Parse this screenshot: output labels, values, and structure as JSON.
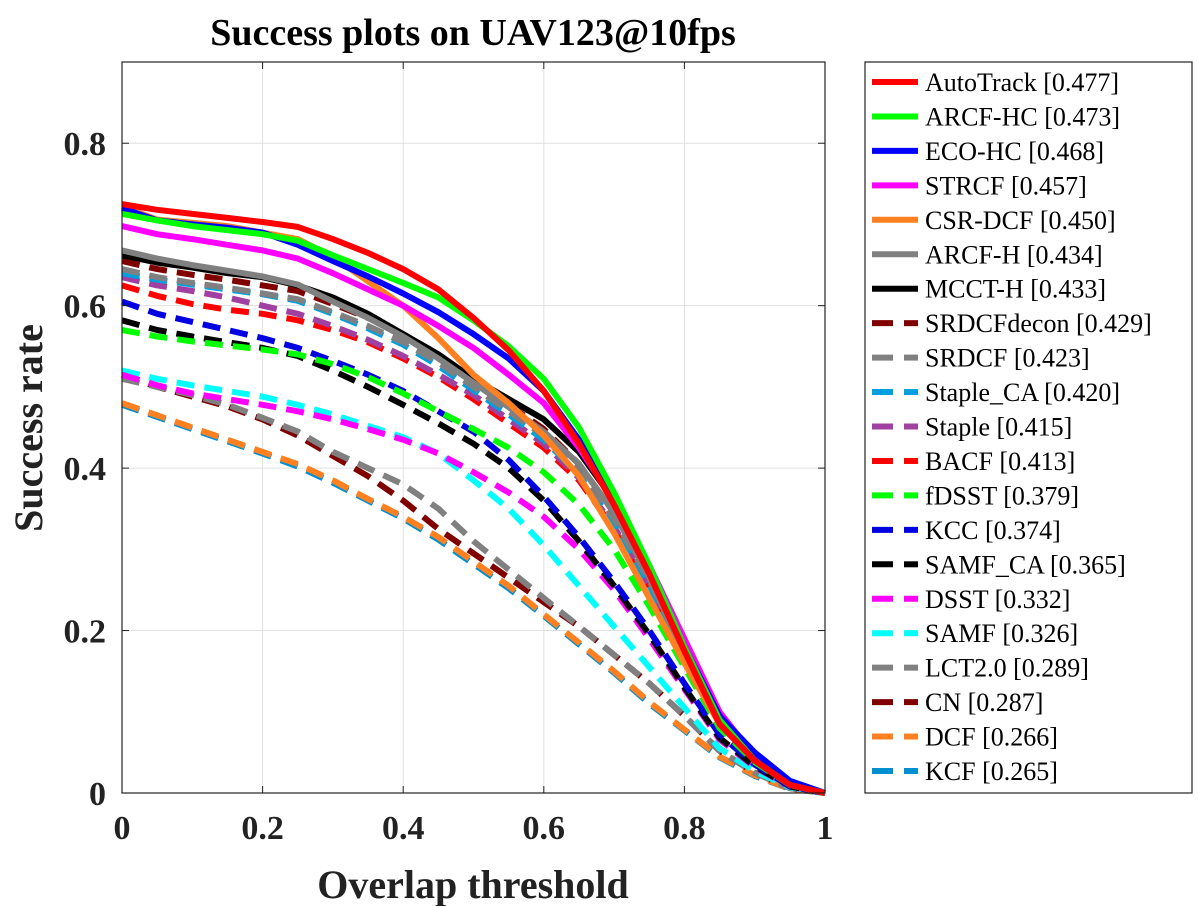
{
  "chart_data": {
    "type": "line",
    "title": "Success plots on UAV123@10fps",
    "xlabel": "Overlap threshold",
    "ylabel": "Success rate",
    "xlim": [
      0,
      1
    ],
    "ylim": [
      0,
      0.9
    ],
    "xticks": [
      0,
      0.2,
      0.4,
      0.6,
      0.8,
      1
    ],
    "xtick_labels": [
      "0",
      "0.2",
      "0.4",
      "0.6",
      "0.8",
      "1"
    ],
    "yticks": [
      0,
      0.2,
      0.4,
      0.6,
      0.8
    ],
    "ytick_labels": [
      "0",
      "0.2",
      "0.4",
      "0.6",
      "0.8"
    ],
    "grid": true,
    "legend_position": "outside-right",
    "x": [
      0,
      0.05,
      0.1,
      0.15,
      0.2,
      0.25,
      0.3,
      0.35,
      0.4,
      0.45,
      0.5,
      0.55,
      0.6,
      0.65,
      0.7,
      0.75,
      0.8,
      0.85,
      0.9,
      0.95,
      1.0
    ],
    "series": [
      {
        "name": "AutoTrack [0.477]",
        "color": "#ff0000",
        "dashed": false,
        "values": [
          0.725,
          0.718,
          0.713,
          0.708,
          0.703,
          0.697,
          0.682,
          0.665,
          0.645,
          0.62,
          0.585,
          0.545,
          0.495,
          0.43,
          0.355,
          0.27,
          0.175,
          0.085,
          0.04,
          0.01,
          0.0
        ]
      },
      {
        "name": "ARCF-HC [0.473]",
        "color": "#00ff00",
        "dashed": false,
        "values": [
          0.713,
          0.705,
          0.698,
          0.693,
          0.688,
          0.68,
          0.662,
          0.645,
          0.628,
          0.61,
          0.582,
          0.55,
          0.51,
          0.45,
          0.37,
          0.28,
          0.18,
          0.09,
          0.04,
          0.01,
          0.0
        ]
      },
      {
        "name": "ECO-HC [0.468]",
        "color": "#0000ff",
        "dashed": false,
        "values": [
          0.72,
          0.705,
          0.7,
          0.696,
          0.69,
          0.675,
          0.655,
          0.636,
          0.615,
          0.592,
          0.565,
          0.535,
          0.495,
          0.435,
          0.36,
          0.275,
          0.18,
          0.095,
          0.05,
          0.015,
          0.0
        ]
      },
      {
        "name": "STRCF [0.457]",
        "color": "#ff00ff",
        "dashed": false,
        "values": [
          0.698,
          0.688,
          0.682,
          0.675,
          0.668,
          0.658,
          0.64,
          0.62,
          0.6,
          0.575,
          0.548,
          0.515,
          0.48,
          0.425,
          0.36,
          0.28,
          0.19,
          0.1,
          0.045,
          0.01,
          0.0
        ]
      },
      {
        "name": "CSR-DCF [0.450]",
        "color": "#ff8020",
        "dashed": false,
        "values": [
          0.722,
          0.706,
          0.702,
          0.698,
          0.69,
          0.682,
          0.66,
          0.63,
          0.6,
          0.56,
          0.515,
          0.48,
          0.44,
          0.39,
          0.32,
          0.24,
          0.16,
          0.085,
          0.04,
          0.01,
          0.0
        ]
      },
      {
        "name": "ARCF-H [0.434]",
        "color": "#808080",
        "dashed": false,
        "values": [
          0.668,
          0.658,
          0.65,
          0.643,
          0.636,
          0.626,
          0.605,
          0.585,
          0.562,
          0.535,
          0.505,
          0.475,
          0.445,
          0.405,
          0.345,
          0.265,
          0.17,
          0.085,
          0.04,
          0.01,
          0.0
        ]
      },
      {
        "name": "MCCT-H [0.433]",
        "color": "#000000",
        "dashed": false,
        "values": [
          0.662,
          0.653,
          0.647,
          0.64,
          0.635,
          0.625,
          0.61,
          0.59,
          0.565,
          0.54,
          0.51,
          0.485,
          0.46,
          0.42,
          0.36,
          0.28,
          0.18,
          0.09,
          0.04,
          0.01,
          0.0
        ]
      },
      {
        "name": "SRDCFdecon [0.429]",
        "color": "#800000",
        "dashed": true,
        "values": [
          0.655,
          0.645,
          0.638,
          0.632,
          0.625,
          0.618,
          0.602,
          0.585,
          0.565,
          0.54,
          0.508,
          0.478,
          0.448,
          0.405,
          0.345,
          0.268,
          0.18,
          0.095,
          0.045,
          0.01,
          0.0
        ]
      },
      {
        "name": "SRDCF [0.423]",
        "color": "#808080",
        "dashed": true,
        "values": [
          0.645,
          0.635,
          0.628,
          0.622,
          0.615,
          0.608,
          0.592,
          0.575,
          0.555,
          0.53,
          0.5,
          0.47,
          0.44,
          0.398,
          0.338,
          0.262,
          0.176,
          0.092,
          0.044,
          0.01,
          0.0
        ]
      },
      {
        "name": "Staple_CA [0.420]",
        "color": "#00a0e0",
        "dashed": true,
        "values": [
          0.64,
          0.632,
          0.626,
          0.62,
          0.614,
          0.606,
          0.59,
          0.572,
          0.552,
          0.526,
          0.496,
          0.466,
          0.435,
          0.392,
          0.332,
          0.256,
          0.172,
          0.09,
          0.043,
          0.01,
          0.0
        ]
      },
      {
        "name": "Staple [0.415]",
        "color": "#a040a0",
        "dashed": true,
        "values": [
          0.635,
          0.625,
          0.618,
          0.61,
          0.6,
          0.59,
          0.575,
          0.558,
          0.538,
          0.515,
          0.49,
          0.46,
          0.43,
          0.388,
          0.328,
          0.252,
          0.168,
          0.088,
          0.042,
          0.01,
          0.0
        ]
      },
      {
        "name": "BACF [0.413]",
        "color": "#ff0000",
        "dashed": true,
        "values": [
          0.625,
          0.612,
          0.602,
          0.595,
          0.59,
          0.582,
          0.57,
          0.555,
          0.535,
          0.512,
          0.485,
          0.455,
          0.425,
          0.385,
          0.325,
          0.25,
          0.166,
          0.086,
          0.041,
          0.01,
          0.0
        ]
      },
      {
        "name": "fDSST [0.379]",
        "color": "#00ff00",
        "dashed": true,
        "values": [
          0.57,
          0.562,
          0.556,
          0.551,
          0.546,
          0.54,
          0.528,
          0.512,
          0.492,
          0.47,
          0.448,
          0.425,
          0.395,
          0.355,
          0.3,
          0.23,
          0.155,
          0.08,
          0.038,
          0.01,
          0.0
        ]
      },
      {
        "name": "KCC [0.374]",
        "color": "#0000e0",
        "dashed": true,
        "values": [
          0.605,
          0.59,
          0.58,
          0.57,
          0.56,
          0.548,
          0.532,
          0.515,
          0.495,
          0.47,
          0.445,
          0.41,
          0.365,
          0.315,
          0.26,
          0.2,
          0.135,
          0.072,
          0.035,
          0.008,
          0.0
        ]
      },
      {
        "name": "SAMF_CA [0.365]",
        "color": "#000000",
        "dashed": true,
        "values": [
          0.582,
          0.57,
          0.562,
          0.555,
          0.548,
          0.538,
          0.52,
          0.5,
          0.478,
          0.455,
          0.43,
          0.4,
          0.36,
          0.31,
          0.255,
          0.195,
          0.13,
          0.068,
          0.033,
          0.008,
          0.0
        ]
      },
      {
        "name": "DSST [0.332]",
        "color": "#ff00ff",
        "dashed": true,
        "values": [
          0.515,
          0.502,
          0.492,
          0.485,
          0.478,
          0.47,
          0.46,
          0.448,
          0.435,
          0.418,
          0.395,
          0.37,
          0.34,
          0.3,
          0.25,
          0.19,
          0.128,
          0.066,
          0.032,
          0.008,
          0.0
        ]
      },
      {
        "name": "SAMF [0.326]",
        "color": "#00ffff",
        "dashed": true,
        "values": [
          0.52,
          0.51,
          0.502,
          0.495,
          0.488,
          0.478,
          0.466,
          0.452,
          0.438,
          0.418,
          0.385,
          0.35,
          0.305,
          0.255,
          0.205,
          0.155,
          0.105,
          0.055,
          0.027,
          0.007,
          0.0
        ]
      },
      {
        "name": "LCT2.0 [0.289]",
        "color": "#808080",
        "dashed": true,
        "values": [
          0.51,
          0.5,
          0.49,
          0.478,
          0.462,
          0.445,
          0.42,
          0.4,
          0.38,
          0.35,
          0.31,
          0.275,
          0.24,
          0.205,
          0.17,
          0.135,
          0.095,
          0.052,
          0.025,
          0.006,
          0.0
        ]
      },
      {
        "name": "CN [0.287]",
        "color": "#800000",
        "dashed": true,
        "values": [
          0.515,
          0.5,
          0.488,
          0.476,
          0.46,
          0.44,
          0.415,
          0.39,
          0.36,
          0.325,
          0.295,
          0.265,
          0.235,
          0.205,
          0.17,
          0.135,
          0.095,
          0.052,
          0.025,
          0.006,
          0.0
        ]
      },
      {
        "name": "DCF [0.266]",
        "color": "#ff8020",
        "dashed": true,
        "values": [
          0.48,
          0.465,
          0.45,
          0.435,
          0.42,
          0.405,
          0.385,
          0.362,
          0.34,
          0.315,
          0.285,
          0.255,
          0.22,
          0.185,
          0.15,
          0.112,
          0.078,
          0.045,
          0.022,
          0.005,
          0.0
        ]
      },
      {
        "name": "KCF [0.265]",
        "color": "#0090d0",
        "dashed": true,
        "values": [
          0.478,
          0.463,
          0.448,
          0.433,
          0.418,
          0.402,
          0.382,
          0.36,
          0.338,
          0.312,
          0.282,
          0.252,
          0.218,
          0.183,
          0.148,
          0.11,
          0.077,
          0.044,
          0.021,
          0.005,
          0.0
        ]
      }
    ]
  }
}
